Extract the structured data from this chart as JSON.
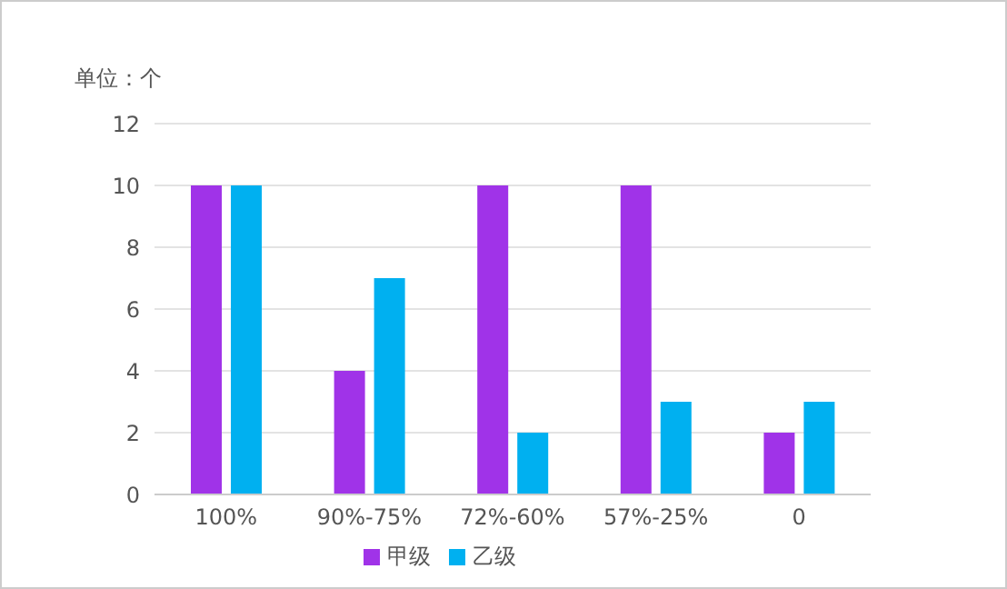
{
  "chart_data": {
    "type": "bar",
    "ylabel": "单位：个",
    "categories": [
      "100%",
      "90%-75%",
      "72%-60%",
      "57%-25%",
      "0"
    ],
    "series": [
      {
        "name": "甲级",
        "color": "#a033e8",
        "values": [
          10,
          4,
          10,
          10,
          2
        ]
      },
      {
        "name": "乙级",
        "color": "#00b0f0",
        "values": [
          10,
          7,
          2,
          3,
          3
        ]
      }
    ],
    "ylim": [
      0,
      12
    ],
    "yticks": [
      0,
      2,
      4,
      6,
      8,
      10,
      12
    ],
    "grid": "y",
    "legend": "bottom"
  }
}
